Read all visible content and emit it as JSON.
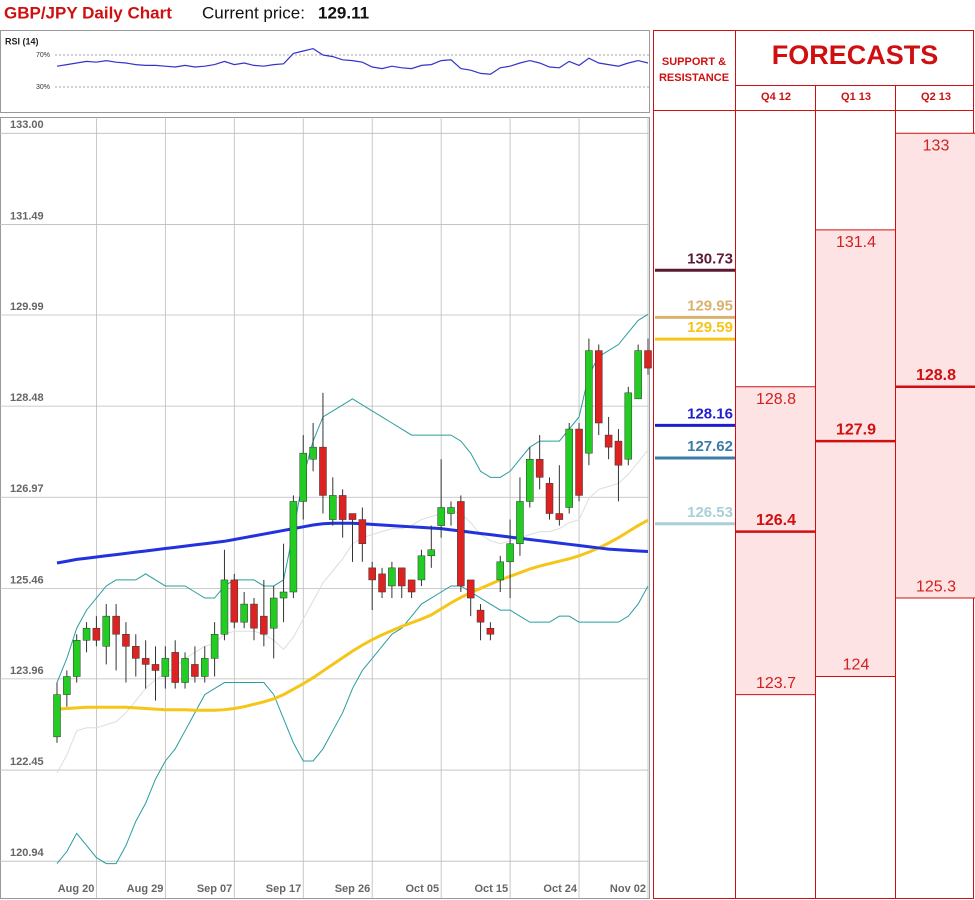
{
  "header": {
    "title": "GBP/JPY Daily Chart",
    "price_label": "Current price:",
    "price": 129.11
  },
  "chart_data": [
    {
      "type": "line",
      "title": "RSI (14)",
      "color": "#3333cc",
      "ylim": [
        0,
        100
      ],
      "yticks": [
        {
          "value": 70,
          "label": "70%"
        },
        {
          "value": 30,
          "label": "30%"
        }
      ],
      "values": [
        56,
        58,
        60,
        62,
        61,
        63,
        61,
        60,
        58,
        57,
        57,
        56,
        55,
        57,
        55,
        56,
        58,
        62,
        58,
        60,
        57,
        56,
        58,
        59,
        72,
        75,
        78,
        70,
        68,
        64,
        63,
        61,
        55,
        53,
        56,
        54,
        53,
        57,
        58,
        63,
        64,
        53,
        51,
        47,
        46,
        54,
        56,
        60,
        63,
        60,
        55,
        54,
        62,
        57,
        66,
        60,
        58,
        56,
        60,
        63,
        60
      ]
    },
    {
      "type": "candlestick",
      "up_color": "#22cc22",
      "down_color": "#dd2222",
      "grid": true,
      "ylim": [
        120.33,
        133.27
      ],
      "yticks": [
        {
          "value": 133,
          "label": "133.00"
        },
        131.49,
        129.99,
        128.48,
        126.97,
        125.46,
        123.96,
        122.45,
        120.94
      ],
      "categories": [
        null,
        null,
        null,
        null,
        "Aug 20",
        null,
        null,
        null,
        null,
        null,
        null,
        "Aug 29",
        null,
        null,
        null,
        null,
        null,
        null,
        "Sep 07",
        null,
        null,
        null,
        null,
        null,
        null,
        "Sep 17",
        null,
        null,
        null,
        null,
        null,
        null,
        "Sep 26",
        null,
        null,
        null,
        null,
        null,
        null,
        "Oct 05",
        null,
        null,
        null,
        null,
        null,
        null,
        "Oct 15",
        null,
        null,
        null,
        null,
        null,
        null,
        "Oct 24",
        null,
        null,
        null,
        null,
        null,
        null,
        "Nov 02"
      ],
      "open": [
        123.0,
        123.7,
        124.0,
        124.6,
        124.8,
        124.5,
        125.0,
        124.7,
        124.5,
        124.3,
        124.2,
        124.0,
        124.4,
        123.9,
        124.2,
        124.0,
        124.3,
        124.7,
        125.6,
        124.9,
        125.2,
        125.0,
        124.8,
        125.3,
        125.4,
        126.9,
        127.6,
        127.8,
        126.6,
        127.0,
        126.7,
        126.6,
        125.8,
        125.7,
        125.5,
        125.8,
        125.6,
        125.6,
        126.0,
        126.5,
        126.7,
        126.9,
        125.6,
        125.1,
        124.8,
        125.6,
        125.9,
        126.2,
        126.9,
        127.6,
        127.2,
        126.7,
        126.8,
        128.1,
        127.7,
        129.4,
        128.0,
        127.9,
        127.6,
        128.6,
        129.4
      ],
      "high": [
        123.9,
        124.1,
        124.7,
        124.9,
        125.0,
        125.2,
        125.2,
        124.9,
        124.7,
        124.6,
        124.5,
        124.5,
        124.6,
        124.4,
        124.5,
        124.5,
        124.9,
        126.1,
        125.7,
        125.4,
        125.3,
        125.6,
        125.5,
        126.2,
        127.0,
        128.0,
        128.2,
        128.7,
        127.3,
        127.1,
        126.7,
        126.8,
        125.9,
        125.8,
        125.9,
        125.8,
        125.6,
        126.1,
        126.5,
        127.6,
        126.9,
        127.0,
        125.6,
        125.2,
        124.9,
        126.0,
        126.6,
        127.3,
        127.8,
        128.0,
        127.3,
        127.5,
        128.2,
        128.2,
        129.6,
        129.5,
        128.3,
        128.1,
        128.8,
        129.5,
        129.6
      ],
      "low": [
        122.9,
        123.5,
        123.9,
        124.4,
        124.5,
        124.2,
        124.1,
        123.9,
        124.0,
        123.8,
        123.6,
        123.8,
        123.8,
        123.8,
        123.9,
        123.9,
        124.0,
        124.6,
        124.8,
        124.8,
        124.6,
        124.5,
        124.3,
        124.9,
        125.3,
        126.6,
        127.4,
        126.7,
        126.5,
        126.3,
        125.9,
        125.9,
        125.1,
        125.3,
        125.3,
        125.3,
        125.3,
        125.5,
        125.8,
        126.3,
        126.5,
        125.4,
        125.0,
        124.6,
        124.6,
        125.4,
        125.3,
        126.0,
        126.8,
        127.1,
        126.6,
        126.5,
        126.7,
        126.9,
        127.5,
        128.0,
        127.6,
        126.9,
        127.5,
        128.6,
        129.0
      ],
      "close": [
        123.7,
        124.0,
        124.6,
        124.8,
        124.6,
        125.0,
        124.7,
        124.5,
        124.3,
        124.2,
        124.1,
        124.3,
        123.9,
        124.3,
        124.0,
        124.3,
        124.7,
        125.6,
        124.9,
        125.2,
        124.8,
        124.7,
        125.3,
        125.4,
        126.9,
        127.7,
        127.8,
        127.0,
        127.0,
        126.6,
        126.6,
        126.2,
        125.6,
        125.4,
        125.8,
        125.5,
        125.4,
        126.0,
        126.1,
        126.8,
        126.8,
        125.5,
        125.3,
        124.9,
        124.7,
        125.9,
        126.2,
        126.9,
        127.6,
        127.3,
        126.7,
        126.6,
        128.1,
        127.0,
        129.4,
        128.2,
        127.8,
        127.5,
        128.7,
        129.4,
        129.11
      ],
      "lines": [
        {
          "color": "#2a9d9d",
          "width": 1,
          "values": [
            123.9,
            124.3,
            124.8,
            125.1,
            125.3,
            125.5,
            125.6,
            125.6,
            125.6,
            125.7,
            125.6,
            125.5,
            125.5,
            125.5,
            125.4,
            125.3,
            125.3,
            125.5,
            125.6,
            125.6,
            125.6,
            125.5,
            125.5,
            125.6,
            126.4,
            127.3,
            127.9,
            128.3,
            128.4,
            128.5,
            128.6,
            128.5,
            128.4,
            128.3,
            128.2,
            128.1,
            128.0,
            128.0,
            128.0,
            128.0,
            128.0,
            127.9,
            127.7,
            127.4,
            127.3,
            127.3,
            127.4,
            127.6,
            127.8,
            127.9,
            127.9,
            127.9,
            128.1,
            128.3,
            129.0,
            129.3,
            129.4,
            129.5,
            129.7,
            129.9,
            130.0
          ]
        },
        {
          "color": "#2a9d9d",
          "width": 1,
          "values": [
            120.9,
            121.1,
            121.4,
            121.2,
            121.0,
            120.9,
            120.9,
            121.2,
            121.6,
            121.9,
            122.3,
            122.6,
            122.8,
            123.1,
            123.4,
            123.7,
            123.8,
            123.9,
            123.9,
            123.9,
            123.9,
            123.9,
            123.7,
            123.3,
            122.9,
            122.6,
            122.6,
            122.8,
            123.1,
            123.4,
            123.8,
            124.1,
            124.3,
            124.5,
            124.7,
            124.8,
            125.0,
            125.2,
            125.3,
            125.4,
            125.5,
            125.5,
            125.4,
            125.3,
            125.2,
            125.1,
            125.1,
            125.0,
            124.9,
            124.9,
            124.9,
            125.0,
            125.0,
            124.9,
            124.9,
            124.9,
            124.9,
            124.9,
            125.0,
            125.2,
            125.5
          ]
        },
        {
          "color": "#dddddd",
          "width": 1,
          "values": [
            122.4,
            122.7,
            123.1,
            123.15,
            123.15,
            123.2,
            123.25,
            123.4,
            123.6,
            123.8,
            123.95,
            124.05,
            124.15,
            124.3,
            124.4,
            124.5,
            124.55,
            124.7,
            124.75,
            124.75,
            124.75,
            124.7,
            124.6,
            124.45,
            124.65,
            124.95,
            125.25,
            125.55,
            125.75,
            125.95,
            126.2,
            126.3,
            126.35,
            126.4,
            126.45,
            126.45,
            126.5,
            126.6,
            126.65,
            126.7,
            126.75,
            126.7,
            126.55,
            126.35,
            126.25,
            126.2,
            126.25,
            126.3,
            126.35,
            126.4,
            126.4,
            126.45,
            126.55,
            126.6,
            126.95,
            127.1,
            127.15,
            127.2,
            127.35,
            127.55,
            127.75
          ]
        },
        {
          "color": "#f5c518",
          "width": 3,
          "values": [
            123.46,
            123.47,
            123.48,
            123.49,
            123.49,
            123.49,
            123.49,
            123.49,
            123.48,
            123.47,
            123.46,
            123.45,
            123.45,
            123.45,
            123.44,
            123.44,
            123.44,
            123.45,
            123.47,
            123.5,
            123.54,
            123.58,
            123.63,
            123.7,
            123.79,
            123.88,
            123.98,
            124.09,
            124.2,
            124.31,
            124.42,
            124.52,
            124.61,
            124.69,
            124.76,
            124.83,
            124.89,
            124.95,
            125.02,
            125.12,
            125.22,
            125.31,
            125.39,
            125.46,
            125.53,
            125.6,
            125.66,
            125.72,
            125.78,
            125.83,
            125.87,
            125.91,
            125.95,
            126.0,
            126.06,
            126.13,
            126.21,
            126.3,
            126.4,
            126.5,
            126.59
          ]
        },
        {
          "color": "#2233dd",
          "width": 3,
          "values": [
            125.88,
            125.91,
            125.94,
            125.96,
            125.98,
            126.0,
            126.02,
            126.04,
            126.06,
            126.08,
            126.1,
            126.12,
            126.14,
            126.16,
            126.18,
            126.2,
            126.22,
            126.24,
            126.27,
            126.3,
            126.33,
            126.36,
            126.39,
            126.42,
            126.45,
            126.48,
            126.51,
            126.53,
            126.54,
            126.54,
            126.54,
            126.53,
            126.52,
            126.51,
            126.5,
            126.49,
            126.48,
            126.47,
            126.46,
            126.45,
            126.43,
            126.41,
            126.39,
            126.37,
            126.35,
            126.33,
            126.31,
            126.29,
            126.27,
            126.25,
            126.23,
            126.21,
            126.19,
            126.17,
            126.15,
            126.13,
            126.11,
            126.1,
            126.09,
            126.08,
            126.07
          ]
        }
      ]
    }
  ],
  "support_resistance": {
    "title": "SUPPORT & RESISTANCE",
    "levels": [
      {
        "value": 130.73,
        "color": "#5b1a33"
      },
      {
        "value": 129.95,
        "color": "#d9b26f"
      },
      {
        "value": 129.59,
        "color": "#f5c518"
      },
      {
        "value": 128.16,
        "color": "#1f1fd0"
      },
      {
        "value": 127.62,
        "color": "#3b7ca8"
      },
      {
        "value": 126.53,
        "color": "#a8d0d8"
      }
    ]
  },
  "forecasts": {
    "title": "FORECASTS",
    "columns": [
      {
        "label": "Q4 12",
        "high": 128.8,
        "mid": 126.4,
        "low": 123.7
      },
      {
        "label": "Q1 13",
        "high": 131.4,
        "mid": 127.9,
        "low": 124
      },
      {
        "label": "Q2 13",
        "high": 133,
        "mid": 128.8,
        "low": 125.3
      }
    ]
  }
}
